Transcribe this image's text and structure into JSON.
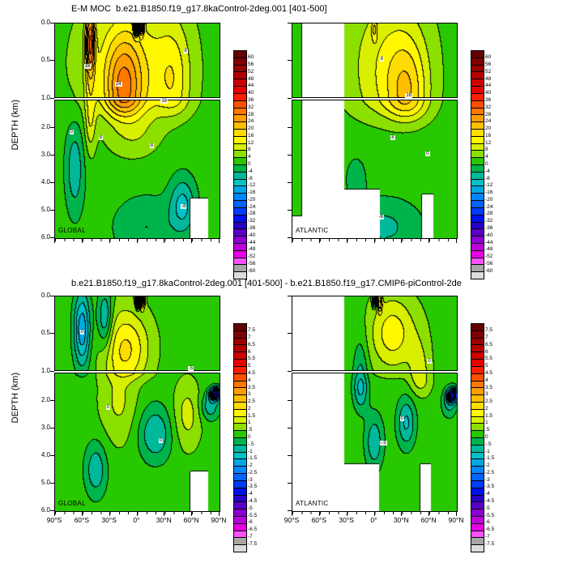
{
  "titles": {
    "top": "E-M MOC  b.e21.B1850.f19_g17.8kaControl-2deg.001 [401-500]",
    "bottom": "b.e21.B1850.f19_g17.8kaControl-2deg.001 [401-500] - b.e21.B1850.f19_g17.CMIP6-piControl-2de"
  },
  "axes": {
    "y_label": "DEPTH (km)",
    "y_ticks_upper": [
      "0.0",
      "0.5",
      "1.0"
    ],
    "y_ticks_lower": [
      "2.0",
      "3.0",
      "4.0",
      "5.0",
      "6.0"
    ],
    "x_ticks": [
      "90°S",
      "60°S",
      "30°S",
      "0°",
      "30°N",
      "60°N",
      "90°N"
    ]
  },
  "chart_data": [
    {
      "type": "filled_contour",
      "title": "E-M MOC  b.e21.B1850.f19_g17.8kaControl-2deg.001 [401-500]",
      "x_axis": {
        "label": "",
        "ticks": [
          "90°S",
          "60°S",
          "30°S",
          "0°",
          "30°N",
          "60°N",
          "90°N"
        ],
        "range": [
          -90,
          90
        ]
      },
      "y_axis": {
        "label": "DEPTH (km)",
        "range_km": [
          0,
          6
        ],
        "split_at_km": 1,
        "ticks_upper": [
          "0.0",
          "0.5",
          "1.0"
        ],
        "ticks_lower": [
          "2.0",
          "3.0",
          "4.0",
          "5.0",
          "6.0"
        ]
      },
      "colorbar": {
        "levels": [
          60,
          56,
          52,
          48,
          44,
          40,
          36,
          32,
          28,
          24,
          20,
          16,
          12,
          8,
          4,
          0,
          -4,
          -8,
          -12,
          -16,
          -20,
          -24,
          -28,
          -32,
          -36,
          -40,
          -44,
          -48,
          -52,
          -56,
          -60
        ],
        "labels": [
          "60",
          "56",
          "52",
          "48",
          "44",
          "40",
          "36",
          "32",
          "28",
          "24",
          "20",
          "16",
          "12",
          "8",
          "4",
          "0",
          "-4",
          "-8",
          "-12",
          "-16",
          "-20",
          "-24",
          "-28",
          "-32",
          "-36",
          "-40",
          "-44",
          "-48",
          "-52",
          "-56",
          "-60"
        ],
        "colors": [
          "#650000",
          "#7f0000",
          "#9a0000",
          "#b40000",
          "#ce0000",
          "#e80000",
          "#ff1e00",
          "#ff5000",
          "#ff7800",
          "#ff9c00",
          "#ffbe00",
          "#ffdc00",
          "#fff800",
          "#d8f000",
          "#8ce000",
          "#28c800",
          "#00b44c",
          "#00b99b",
          "#00c3c8",
          "#00a8e1",
          "#0087ff",
          "#0064ff",
          "#003cff",
          "#000ff0",
          "#2800c8",
          "#5a00c8",
          "#8c00d2",
          "#be00dc",
          "#e600e6",
          "#ff50ff",
          "#a6a6a6",
          "#dcdcdc"
        ]
      },
      "panels": [
        {
          "id": "global-top",
          "label": "GLOBAL",
          "base": 2,
          "approx_features": [
            [
              17,
              -15,
              20,
              0.9,
              0.7
            ],
            [
              12,
              -5,
              55,
              0.6,
              1.0
            ],
            [
              24,
              -51,
              5,
              0.25,
              0.45
            ],
            [
              9,
              -51,
              6,
              1.7,
              1.2
            ],
            [
              -68,
              -1,
              2.2,
              0.0,
              0.12
            ],
            [
              45,
              5,
              2.5,
              0.0,
              0.12
            ],
            [
              8,
              40,
              18,
              0.8,
              0.8
            ],
            [
              -9,
              -68,
              10,
              3.5,
              1.6
            ],
            [
              -11,
              50,
              14,
              4.8,
              1.0
            ],
            [
              -6,
              10,
              35,
              5.6,
              1.1
            ],
            [
              6,
              -5,
              30,
              2.2,
              0.9
            ]
          ],
          "mask_rects": [
            [
              58,
              78,
              4.55,
              6
            ]
          ],
          "contour_labels": [
            {
              "t": "24",
              "lat": -20,
              "d": 0.85
            },
            {
              "t": "16",
              "lat": 30,
              "d": 1.1
            },
            {
              "t": "8",
              "lat": 55,
              "d": 0.4
            },
            {
              "t": "16",
              "lat": -54,
              "d": 0.6
            },
            {
              "t": "8",
              "lat": -38,
              "d": 2.4
            },
            {
              "t": "0",
              "lat": -70,
              "d": 2.2
            },
            {
              "t": "8",
              "lat": 18,
              "d": 2.7
            },
            {
              "t": "-8",
              "lat": 52,
              "d": 4.9
            }
          ]
        },
        {
          "id": "atlantic-top",
          "label": "ATLANTIC",
          "base": 2,
          "mask_south": [
            -79,
            -33
          ],
          "approx_features": [
            [
              10,
              15,
              45,
              0.6,
              1.1
            ],
            [
              12,
              36,
              22,
              1.0,
              0.75
            ],
            [
              8,
              0,
              3,
              0.08,
              0.15
            ],
            [
              -7,
              10,
              40,
              5.6,
              1.0
            ],
            [
              -4,
              -20,
              12,
              3.8,
              0.8
            ]
          ],
          "mask_rects": [
            [
              -33,
              6,
              4.25,
              6
            ],
            [
              52,
              64,
              4.4,
              6
            ],
            [
              -90,
              -79,
              5.2,
              6
            ]
          ],
          "contour_labels": [
            {
              "t": "16",
              "lat": 38,
              "d": 1.0
            },
            {
              "t": "8",
              "lat": 10,
              "d": 0.5
            },
            {
              "t": "8",
              "lat": 22,
              "d": 2.4
            },
            {
              "t": "0",
              "lat": 60,
              "d": 3.0
            },
            {
              "t": "-8",
              "lat": 8,
              "d": 5.3
            }
          ]
        }
      ]
    },
    {
      "type": "filled_contour",
      "title": "b.e21.B1850.f19_g17.8kaControl-2deg.001 [401-500] - b.e21.B1850.f19_g17.CMIP6-piControl-2de",
      "x_axis": {
        "label": "",
        "ticks": [
          "90°S",
          "60°S",
          "30°S",
          "0°",
          "30°N",
          "60°N",
          "90°N"
        ],
        "range": [
          -90,
          90
        ]
      },
      "y_axis": {
        "label": "DEPTH (km)",
        "range_km": [
          0,
          6
        ],
        "split_at_km": 1,
        "ticks_upper": [
          "0.0",
          "0.5",
          "1.0"
        ],
        "ticks_lower": [
          "2.0",
          "3.0",
          "4.0",
          "5.0",
          "6.0"
        ]
      },
      "colorbar": {
        "levels": [
          7.5,
          7,
          6.5,
          6,
          5.5,
          5,
          4.5,
          4,
          3.5,
          3,
          2.5,
          2,
          1.5,
          1,
          0.5,
          0,
          -0.5,
          -1,
          -1.5,
          -2,
          -2.5,
          -3,
          -3.5,
          -4,
          -4.5,
          -5,
          -5.5,
          -6,
          -6.5,
          -7,
          -7.5
        ],
        "labels": [
          "7.5",
          "7",
          "6.5",
          "6",
          "5.5",
          "5",
          "4.5",
          "4",
          "3.5",
          "3",
          "2.5",
          "2",
          "1.5",
          "1",
          ".5",
          "0",
          "-.5",
          "-1",
          "-1.5",
          "-2",
          "-2.5",
          "-3",
          "-3.5",
          "-4",
          "-4.5",
          "-5",
          "-5.5",
          "-6",
          "-6.5",
          "-7",
          "-7.5"
        ],
        "colors": [
          "#650000",
          "#7f0000",
          "#9a0000",
          "#b40000",
          "#ce0000",
          "#e80000",
          "#ff1e00",
          "#ff5000",
          "#ff7800",
          "#ff9c00",
          "#ffbe00",
          "#ffdc00",
          "#fff800",
          "#d8f000",
          "#8ce000",
          "#28c800",
          "#00b44c",
          "#00b99b",
          "#00c3c8",
          "#00a8e1",
          "#0087ff",
          "#0064ff",
          "#003cff",
          "#000ff0",
          "#2800c8",
          "#5a00c8",
          "#8c00d2",
          "#be00dc",
          "#e600e6",
          "#ff50ff",
          "#a6a6a6",
          "#dcdcdc"
        ]
      },
      "panels": [
        {
          "id": "global-diff",
          "label": "GLOBAL",
          "base": 0.3,
          "approx_features": [
            [
              -2.2,
              -60,
              9,
              0.45,
              0.5
            ],
            [
              -8.4,
              1,
              2.2,
              0.0,
              0.12
            ],
            [
              4.5,
              6,
              2.5,
              0.0,
              0.13
            ],
            [
              1.5,
              -10,
              25,
              0.7,
              0.5
            ],
            [
              -1.5,
              -35,
              8,
              0.3,
              0.4
            ],
            [
              -4.5,
              86,
              6,
              1.75,
              0.22
            ],
            [
              -1.2,
              80,
              10,
              2.2,
              0.5
            ],
            [
              -1.3,
              20,
              18,
              3.2,
              1.0
            ],
            [
              -1.2,
              -45,
              12,
              4.5,
              1.0
            ],
            [
              0.9,
              55,
              15,
              2.5,
              1.2
            ],
            [
              0.8,
              -20,
              20,
              2.0,
              1.5
            ]
          ],
          "mask_rects": [
            [
              58,
              78,
              4.55,
              6
            ]
          ],
          "contour_labels": [
            {
              "t": "0",
              "lat": -58,
              "d": 0.5
            },
            {
              "t": "0",
              "lat": -30,
              "d": 2.3
            },
            {
              "t": "0",
              "lat": 28,
              "d": 3.5
            },
            {
              "t": ".5",
              "lat": 60,
              "d": 1.0
            }
          ]
        },
        {
          "id": "atlantic-diff",
          "label": "ATLANTIC",
          "base": 0.3,
          "mask_south": [
            -91,
            -33
          ],
          "approx_features": [
            [
              -4.2,
              86,
              6,
              1.8,
              0.25
            ],
            [
              -1.0,
              82,
              8,
              2.1,
              0.5
            ],
            [
              1.5,
              20,
              25,
              0.5,
              0.5
            ],
            [
              -1.4,
              35,
              10,
              2.8,
              0.9
            ],
            [
              -1.2,
              0,
              10,
              3.5,
              1.0
            ],
            [
              1.0,
              50,
              12,
              1.2,
              0.6
            ],
            [
              -1.5,
              -15,
              8,
              1.5,
              0.8
            ],
            [
              -2.5,
              0,
              2,
              0.05,
              0.1
            ],
            [
              2,
              6,
              2.5,
              0.1,
              0.12
            ]
          ],
          "mask_rects": [
            [
              -33,
              5,
              4.3,
              6
            ],
            [
              50,
              62,
              4.3,
              6
            ]
          ],
          "contour_labels": [
            {
              "t": "0",
              "lat": 32,
              "d": 2.7
            },
            {
              "t": "0",
              "lat": 62,
              "d": 0.9
            },
            {
              "t": "-.5",
              "lat": 10,
              "d": 3.6
            }
          ]
        }
      ]
    }
  ]
}
